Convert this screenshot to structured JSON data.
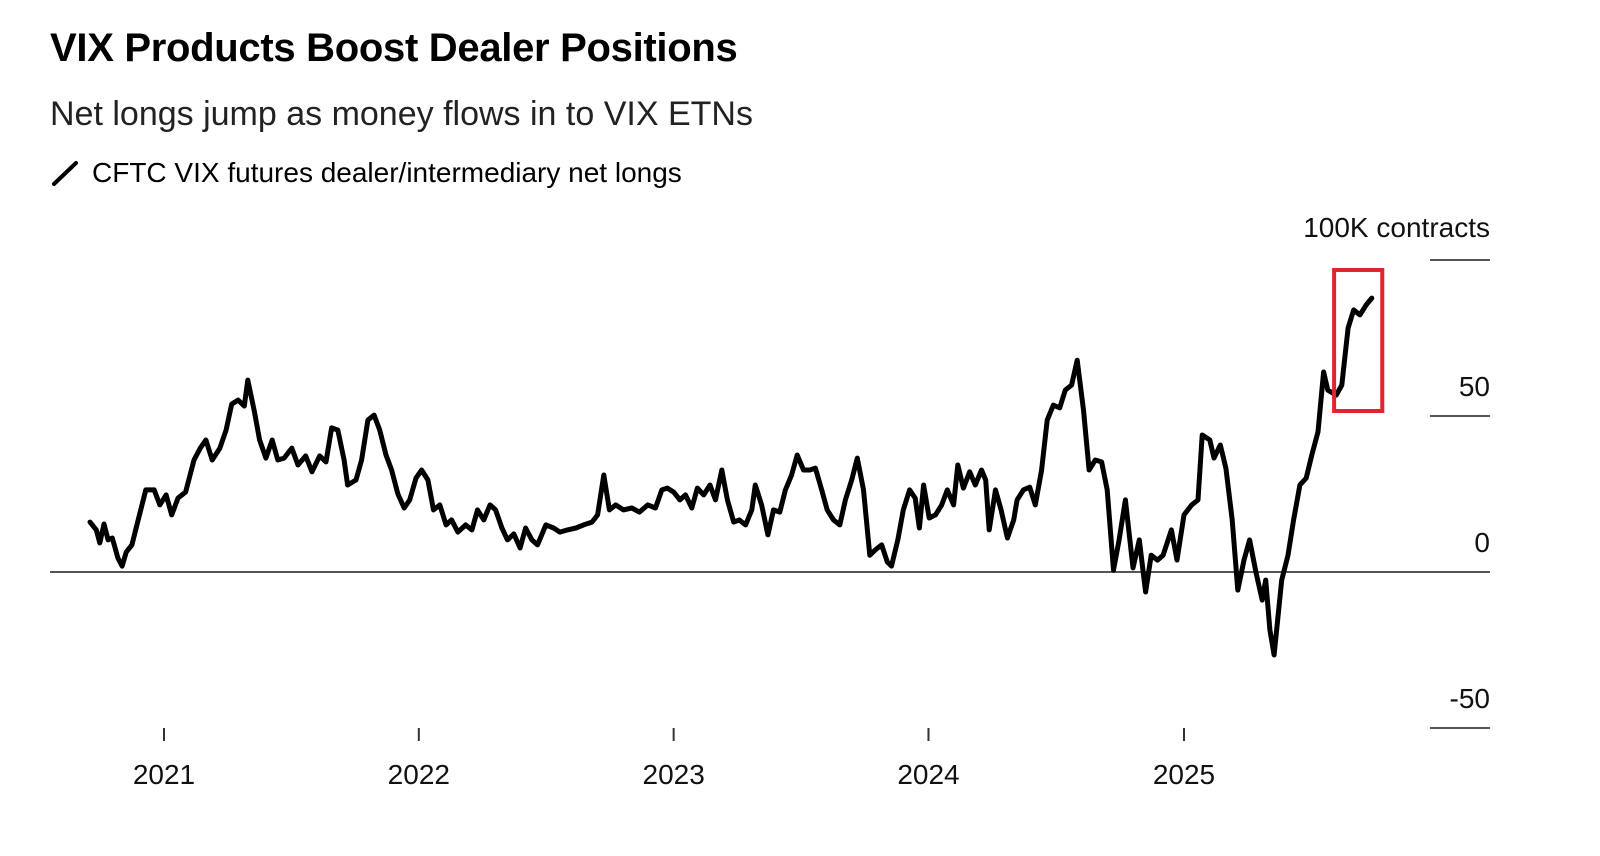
{
  "chart_data": {
    "type": "line",
    "title": "VIX Products Boost Dealer Positions",
    "subtitle": "Net longs jump as money flows in to VIX ETNs",
    "unit_label": "100K contracts",
    "legend": [
      {
        "name": "CFTC VIX futures dealer/intermediary net longs",
        "color": "#000000"
      }
    ],
    "legend_placement": "top-left",
    "grid": false,
    "x_ticks": [
      "2021",
      "2022",
      "2023",
      "2024",
      "2025"
    ],
    "y_ticks": [
      100,
      50,
      0,
      -50
    ],
    "y_tick_labels": [
      "100K contracts",
      "50",
      "0",
      "-50"
    ],
    "ylim": [
      -50,
      100
    ],
    "xlim": [
      "2020-07-22",
      "2025-12-31"
    ],
    "highlight": {
      "color": "#e0262d",
      "x_range": [
        "2025-08-04",
        "2025-10-12"
      ],
      "y_range": [
        51.6,
        96.8
      ]
    },
    "series": [
      {
        "name": "CFTC VIX futures dealer/intermediary net longs",
        "color": "#000000",
        "points": [
          [
            "2020-09-17",
            16.0
          ],
          [
            "2020-09-26",
            13.5
          ],
          [
            "2020-10-01",
            9.3
          ],
          [
            "2020-10-07",
            15.4
          ],
          [
            "2020-10-13",
            10.3
          ],
          [
            "2020-10-19",
            10.9
          ],
          [
            "2020-10-27",
            4.5
          ],
          [
            "2020-11-02",
            1.9
          ],
          [
            "2020-11-08",
            6.4
          ],
          [
            "2020-11-16",
            8.7
          ],
          [
            "2020-11-25",
            16.7
          ],
          [
            "2020-12-06",
            26.3
          ],
          [
            "2020-12-18",
            26.3
          ],
          [
            "2020-12-26",
            21.5
          ],
          [
            "2021-01-04",
            24.7
          ],
          [
            "2021-01-12",
            18.3
          ],
          [
            "2021-01-21",
            23.7
          ],
          [
            "2021-02-01",
            25.6
          ],
          [
            "2021-02-13",
            35.9
          ],
          [
            "2021-02-22",
            39.7
          ],
          [
            "2021-03-02",
            42.3
          ],
          [
            "2021-03-11",
            35.9
          ],
          [
            "2021-03-22",
            39.7
          ],
          [
            "2021-03-31",
            45.5
          ],
          [
            "2021-04-08",
            53.8
          ],
          [
            "2021-04-17",
            55.1
          ],
          [
            "2021-04-26",
            53.2
          ],
          [
            "2021-05-01",
            61.5
          ],
          [
            "2021-05-10",
            51.9
          ],
          [
            "2021-05-18",
            42.3
          ],
          [
            "2021-05-27",
            36.5
          ],
          [
            "2021-06-05",
            42.3
          ],
          [
            "2021-06-13",
            35.9
          ],
          [
            "2021-06-22",
            36.5
          ],
          [
            "2021-07-03",
            39.7
          ],
          [
            "2021-07-12",
            34.3
          ],
          [
            "2021-07-23",
            37.2
          ],
          [
            "2021-08-01",
            32.1
          ],
          [
            "2021-08-12",
            37.2
          ],
          [
            "2021-08-21",
            35.3
          ],
          [
            "2021-08-29",
            46.2
          ],
          [
            "2021-09-07",
            45.5
          ],
          [
            "2021-09-16",
            35.9
          ],
          [
            "2021-09-21",
            27.9
          ],
          [
            "2021-10-03",
            29.5
          ],
          [
            "2021-10-11",
            35.9
          ],
          [
            "2021-10-20",
            48.7
          ],
          [
            "2021-10-29",
            50.3
          ],
          [
            "2021-11-06",
            45.5
          ],
          [
            "2021-11-15",
            37.5
          ],
          [
            "2021-11-23",
            32.7
          ],
          [
            "2021-12-02",
            25.0
          ],
          [
            "2021-12-11",
            20.5
          ],
          [
            "2021-12-19",
            23.1
          ],
          [
            "2021-12-28",
            30.1
          ],
          [
            "2022-01-05",
            32.7
          ],
          [
            "2022-01-14",
            29.5
          ],
          [
            "2022-01-22",
            19.9
          ],
          [
            "2022-01-31",
            21.5
          ],
          [
            "2022-02-09",
            15.1
          ],
          [
            "2022-02-17",
            16.7
          ],
          [
            "2022-02-26",
            12.8
          ],
          [
            "2022-03-09",
            15.1
          ],
          [
            "2022-03-18",
            13.5
          ],
          [
            "2022-03-26",
            19.9
          ],
          [
            "2022-04-04",
            16.7
          ],
          [
            "2022-04-13",
            21.5
          ],
          [
            "2022-04-21",
            19.9
          ],
          [
            "2022-04-30",
            14.1
          ],
          [
            "2022-05-08",
            10.3
          ],
          [
            "2022-05-17",
            12.2
          ],
          [
            "2022-05-26",
            7.7
          ],
          [
            "2022-06-03",
            14.1
          ],
          [
            "2022-06-12",
            10.3
          ],
          [
            "2022-06-20",
            8.7
          ],
          [
            "2022-07-02",
            15.1
          ],
          [
            "2022-07-13",
            14.1
          ],
          [
            "2022-07-22",
            12.8
          ],
          [
            "2022-08-02",
            13.5
          ],
          [
            "2022-08-14",
            14.1
          ],
          [
            "2022-08-25",
            15.1
          ],
          [
            "2022-09-06",
            16.0
          ],
          [
            "2022-09-14",
            18.3
          ],
          [
            "2022-09-23",
            31.1
          ],
          [
            "2022-10-01",
            19.9
          ],
          [
            "2022-10-10",
            21.5
          ],
          [
            "2022-10-21",
            19.9
          ],
          [
            "2022-11-02",
            20.5
          ],
          [
            "2022-11-13",
            19.2
          ],
          [
            "2022-11-25",
            21.5
          ],
          [
            "2022-12-06",
            20.5
          ],
          [
            "2022-12-15",
            26.3
          ],
          [
            "2022-12-23",
            26.9
          ],
          [
            "2023-01-01",
            25.6
          ],
          [
            "2023-01-10",
            23.1
          ],
          [
            "2023-01-18",
            24.7
          ],
          [
            "2023-01-27",
            20.5
          ],
          [
            "2023-02-04",
            26.9
          ],
          [
            "2023-02-13",
            24.7
          ],
          [
            "2023-02-22",
            27.9
          ],
          [
            "2023-03-02",
            23.1
          ],
          [
            "2023-03-11",
            32.7
          ],
          [
            "2023-03-19",
            23.1
          ],
          [
            "2023-03-28",
            16.0
          ],
          [
            "2023-04-05",
            16.7
          ],
          [
            "2023-04-14",
            15.1
          ],
          [
            "2023-04-23",
            19.9
          ],
          [
            "2023-04-28",
            27.9
          ],
          [
            "2023-05-07",
            21.5
          ],
          [
            "2023-05-16",
            11.9
          ],
          [
            "2023-05-24",
            19.9
          ],
          [
            "2023-06-02",
            19.2
          ],
          [
            "2023-06-10",
            26.3
          ],
          [
            "2023-06-19",
            31.1
          ],
          [
            "2023-06-27",
            37.5
          ],
          [
            "2023-07-06",
            32.7
          ],
          [
            "2023-07-15",
            32.7
          ],
          [
            "2023-07-23",
            33.3
          ],
          [
            "2023-08-01",
            26.3
          ],
          [
            "2023-08-09",
            19.9
          ],
          [
            "2023-08-18",
            16.7
          ],
          [
            "2023-08-27",
            15.1
          ],
          [
            "2023-09-04",
            23.1
          ],
          [
            "2023-09-13",
            29.5
          ],
          [
            "2023-09-21",
            36.5
          ],
          [
            "2023-09-30",
            26.3
          ],
          [
            "2023-10-09",
            5.4
          ],
          [
            "2023-10-17",
            7.1
          ],
          [
            "2023-10-26",
            8.7
          ],
          [
            "2023-11-03",
            3.2
          ],
          [
            "2023-11-09",
            1.9
          ],
          [
            "2023-11-18",
            10.3
          ],
          [
            "2023-11-26",
            19.9
          ],
          [
            "2023-12-05",
            26.3
          ],
          [
            "2023-12-13",
            23.7
          ],
          [
            "2023-12-19",
            14.1
          ],
          [
            "2023-12-25",
            27.9
          ],
          [
            "2024-01-02",
            17.3
          ],
          [
            "2024-01-11",
            18.3
          ],
          [
            "2024-01-20",
            21.5
          ],
          [
            "2024-01-28",
            26.3
          ],
          [
            "2024-02-06",
            21.5
          ],
          [
            "2024-02-12",
            34.3
          ],
          [
            "2024-02-20",
            26.9
          ],
          [
            "2024-02-29",
            32.1
          ],
          [
            "2024-03-08",
            27.9
          ],
          [
            "2024-03-17",
            32.7
          ],
          [
            "2024-03-23",
            29.5
          ],
          [
            "2024-03-28",
            13.5
          ],
          [
            "2024-04-06",
            26.3
          ],
          [
            "2024-04-14",
            19.9
          ],
          [
            "2024-04-23",
            10.9
          ],
          [
            "2024-05-02",
            16.7
          ],
          [
            "2024-05-07",
            23.1
          ],
          [
            "2024-05-16",
            26.3
          ],
          [
            "2024-05-25",
            27.2
          ],
          [
            "2024-06-02",
            21.5
          ],
          [
            "2024-06-11",
            32.7
          ],
          [
            "2024-06-19",
            48.7
          ],
          [
            "2024-06-28",
            53.5
          ],
          [
            "2024-07-07",
            52.6
          ],
          [
            "2024-07-15",
            58.3
          ],
          [
            "2024-07-24",
            59.9
          ],
          [
            "2024-08-01",
            67.9
          ],
          [
            "2024-08-10",
            51.9
          ],
          [
            "2024-08-18",
            32.7
          ],
          [
            "2024-08-27",
            35.9
          ],
          [
            "2024-09-05",
            35.3
          ],
          [
            "2024-09-13",
            26.3
          ],
          [
            "2024-09-22",
            0.6
          ],
          [
            "2024-09-30",
            10.3
          ],
          [
            "2024-10-09",
            23.1
          ],
          [
            "2024-10-20",
            1.3
          ],
          [
            "2024-10-29",
            10.3
          ],
          [
            "2024-11-07",
            -6.4
          ],
          [
            "2024-11-15",
            5.4
          ],
          [
            "2024-11-24",
            3.8
          ],
          [
            "2024-12-02",
            5.4
          ],
          [
            "2024-12-14",
            13.5
          ],
          [
            "2024-12-22",
            3.8
          ],
          [
            "2025-01-01",
            18.3
          ],
          [
            "2025-01-12",
            21.5
          ],
          [
            "2025-01-21",
            23.1
          ],
          [
            "2025-01-27",
            43.9
          ],
          [
            "2025-02-07",
            42.3
          ],
          [
            "2025-02-13",
            36.5
          ],
          [
            "2025-02-22",
            40.7
          ],
          [
            "2025-03-02",
            33.3
          ],
          [
            "2025-03-11",
            16.7
          ],
          [
            "2025-03-19",
            -5.8
          ],
          [
            "2025-03-28",
            3.8
          ],
          [
            "2025-04-05",
            10.3
          ],
          [
            "2025-04-14",
            0.0
          ],
          [
            "2025-04-23",
            -9.0
          ],
          [
            "2025-04-28",
            -2.6
          ],
          [
            "2025-05-04",
            -18.6
          ],
          [
            "2025-05-10",
            -26.6
          ],
          [
            "2025-05-21",
            -2.6
          ],
          [
            "2025-05-30",
            5.4
          ],
          [
            "2025-06-07",
            16.7
          ],
          [
            "2025-06-16",
            27.9
          ],
          [
            "2025-06-25",
            30.1
          ],
          [
            "2025-07-03",
            37.5
          ],
          [
            "2025-07-12",
            44.9
          ],
          [
            "2025-07-20",
            64.1
          ],
          [
            "2025-07-26",
            58.3
          ],
          [
            "2025-08-07",
            56.7
          ],
          [
            "2025-08-15",
            59.9
          ],
          [
            "2025-08-24",
            78.2
          ],
          [
            "2025-09-01",
            84.0
          ],
          [
            "2025-09-10",
            82.4
          ],
          [
            "2025-09-19",
            85.6
          ],
          [
            "2025-09-27",
            87.8
          ]
        ]
      }
    ]
  }
}
